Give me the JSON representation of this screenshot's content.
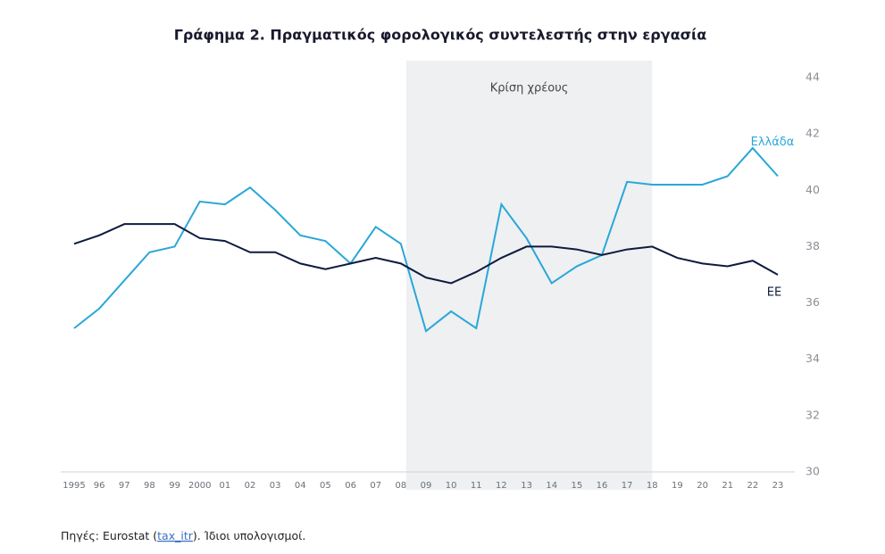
{
  "chart_data": {
    "type": "line",
    "title": "Γράφημα 2. Πραγματικός φορολογικός συντελεστής στην εργασία",
    "categories": [
      "1995",
      "96",
      "97",
      "98",
      "99",
      "2000",
      "01",
      "02",
      "03",
      "04",
      "05",
      "06",
      "07",
      "08",
      "09",
      "10",
      "11",
      "12",
      "13",
      "14",
      "15",
      "16",
      "17",
      "18",
      "19",
      "20",
      "21",
      "22",
      "23"
    ],
    "series": [
      {
        "name": "Ελλάδα",
        "color": "#2aa7d8",
        "values": [
          35.1,
          35.8,
          36.8,
          37.8,
          38.0,
          39.6,
          39.5,
          40.1,
          39.3,
          38.4,
          38.2,
          37.4,
          38.7,
          38.1,
          35.0,
          35.7,
          35.1,
          39.5,
          38.3,
          36.7,
          37.3,
          37.7,
          40.3,
          40.2,
          40.2,
          40.2,
          40.5,
          41.5,
          40.5
        ]
      },
      {
        "name": "ΕΕ",
        "color": "#0d1b3e",
        "values": [
          38.1,
          38.4,
          38.8,
          38.8,
          38.8,
          38.3,
          38.2,
          37.8,
          37.8,
          37.4,
          37.2,
          37.4,
          37.6,
          37.4,
          36.9,
          36.7,
          37.1,
          37.6,
          38.0,
          38.0,
          37.9,
          37.7,
          37.9,
          38.0,
          37.6,
          37.4,
          37.3,
          37.5,
          37.0
        ]
      }
    ],
    "ylim": [
      30,
      44
    ],
    "yticks": [
      30,
      32,
      34,
      36,
      38,
      40,
      42,
      44
    ],
    "grid": false,
    "shade": {
      "from": "08",
      "to": "18",
      "label": "Κρίση χρέους",
      "color": "#eef0f2"
    },
    "source": {
      "prefix": "Πηγές: Eurostat (",
      "link": "tax_itr",
      "suffix": ").  Ίδιοι υπολογισμοί."
    }
  }
}
